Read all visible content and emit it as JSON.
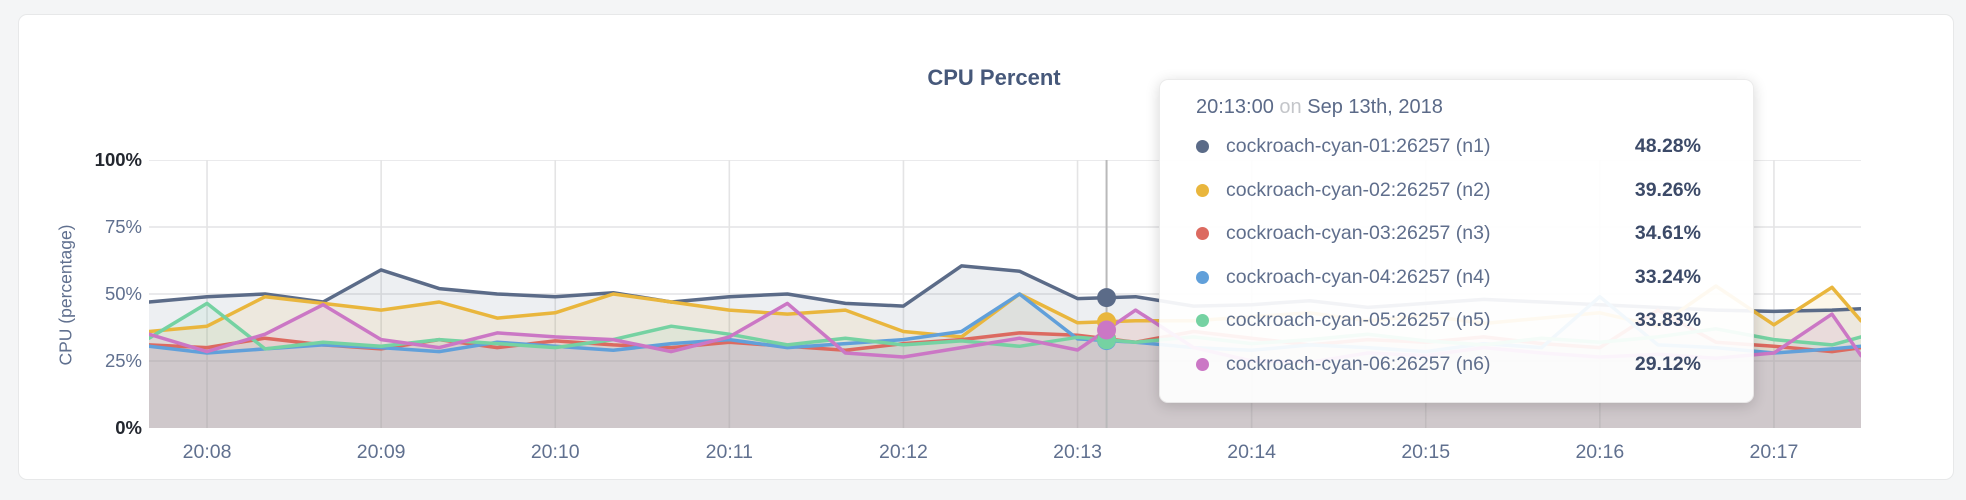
{
  "page": {
    "background": "#f4f5f6"
  },
  "card": {
    "background": "#ffffff",
    "border_color": "#e7e8e9"
  },
  "chart_data": {
    "type": "area",
    "title": "CPU Percent",
    "ylabel": "CPU (percentage)",
    "xlabel": "",
    "ylim": [
      0,
      100
    ],
    "grid": true,
    "legend": "tooltip-only",
    "ytick_labels": [
      "0%",
      "25%",
      "50%",
      "75%",
      "100%"
    ],
    "ytick_values": [
      0,
      25,
      50,
      75,
      100
    ],
    "xtick_labels": [
      "20:08",
      "20:09",
      "20:10",
      "20:11",
      "20:12",
      "20:13",
      "20:14",
      "20:15",
      "20:16",
      "20:17"
    ],
    "x_window": {
      "start_time": "20:07:40",
      "end_time": "20:17:30",
      "total_sec": 590,
      "first_tick_offset_sec": 20,
      "tick_interval_sec": 60
    },
    "t_sec": [
      0,
      20,
      40,
      60,
      80,
      100,
      120,
      140,
      160,
      180,
      200,
      220,
      240,
      260,
      280,
      300,
      320,
      340,
      360,
      380,
      400,
      420,
      440,
      460,
      480,
      500,
      520,
      540,
      560,
      580,
      590
    ],
    "series": [
      {
        "id": "n1",
        "name": "cockroach-cyan-01:26257 (n1)",
        "color": "#5b6b88",
        "values": [
          47,
          49,
          50,
          47,
          59,
          52,
          50,
          49,
          50.5,
          47,
          49,
          50,
          46.5,
          45.5,
          60.5,
          58.5,
          48.28,
          49,
          45.5,
          46,
          47.5,
          45,
          46.5,
          48,
          47,
          46,
          45,
          44,
          43.5,
          44,
          44.5
        ]
      },
      {
        "id": "n2",
        "name": "cockroach-cyan-02:26257 (n2)",
        "color": "#e9b63d",
        "values": [
          36,
          38,
          49,
          46.5,
          44,
          47,
          41,
          43,
          50,
          47,
          44,
          42.5,
          44,
          36,
          34,
          50,
          39.26,
          40,
          40,
          41.5,
          43,
          40,
          42,
          39,
          41,
          43,
          38,
          53,
          38.5,
          52.5,
          40
        ]
      },
      {
        "id": "n3",
        "name": "cockroach-cyan-03:26257 (n3)",
        "color": "#dc6a60",
        "values": [
          31,
          30,
          33.5,
          31,
          29.5,
          33,
          30,
          32.5,
          31,
          30,
          32,
          30.5,
          29,
          31.5,
          33,
          35.5,
          34.61,
          32,
          36,
          33.5,
          31,
          33,
          32,
          34,
          31.5,
          30,
          44,
          32,
          30.5,
          28.5,
          30
        ]
      },
      {
        "id": "n4",
        "name": "cockroach-cyan-04:26257 (n4)",
        "color": "#61a0da",
        "values": [
          30.5,
          28,
          29.5,
          31,
          30,
          28.5,
          32,
          30.5,
          29,
          31.5,
          33,
          30,
          31.5,
          33,
          36,
          50,
          33.24,
          32,
          30,
          29,
          31,
          30,
          28.5,
          31.5,
          30,
          49,
          31,
          30,
          28,
          29.5,
          30.5
        ]
      },
      {
        "id": "n5",
        "name": "cockroach-cyan-05:26257 (n5)",
        "color": "#75d2a2",
        "values": [
          33.5,
          46.5,
          29.5,
          32,
          30.5,
          33,
          31.5,
          30,
          33,
          38,
          35,
          31,
          33.5,
          31,
          32.5,
          30.5,
          33.83,
          32,
          34,
          31.5,
          33,
          35,
          32.5,
          31,
          33.5,
          32,
          34,
          37,
          33,
          31,
          34
        ]
      },
      {
        "id": "n6",
        "name": "cockroach-cyan-06:26257 (n6)",
        "color": "#cb77c5",
        "values": [
          35,
          28.5,
          35,
          46,
          33,
          30,
          35.5,
          34,
          33,
          28.5,
          34,
          46.5,
          28,
          26.5,
          30,
          33.5,
          29.12,
          44,
          30,
          25,
          24.5,
          28,
          27,
          30,
          28,
          26.5,
          27.5,
          26,
          28,
          42.5,
          27
        ]
      }
    ],
    "fill_opacity": 0.11,
    "line_width": 3.5,
    "grid_color": "#e4e4e5",
    "hover": {
      "t_sec": 330,
      "snap_time": "20:13:00",
      "line_color": "#b9b9ba",
      "dot_radius": 9.5
    }
  },
  "tooltip": {
    "time": "20:13:00",
    "conjunction": "on",
    "date": "Sep 13th, 2018",
    "rows": [
      {
        "label": "cockroach-cyan-01:26257 (n1)",
        "value": "48.28%",
        "color": "#5b6b88"
      },
      {
        "label": "cockroach-cyan-02:26257 (n2)",
        "value": "39.26%",
        "color": "#e9b63d"
      },
      {
        "label": "cockroach-cyan-03:26257 (n3)",
        "value": "34.61%",
        "color": "#dc6a60"
      },
      {
        "label": "cockroach-cyan-04:26257 (n4)",
        "value": "33.24%",
        "color": "#61a0da"
      },
      {
        "label": "cockroach-cyan-05:26257 (n5)",
        "value": "33.83%",
        "color": "#75d2a2"
      },
      {
        "label": "cockroach-cyan-06:26257 (n6)",
        "value": "29.12%",
        "color": "#cb77c5"
      }
    ]
  }
}
